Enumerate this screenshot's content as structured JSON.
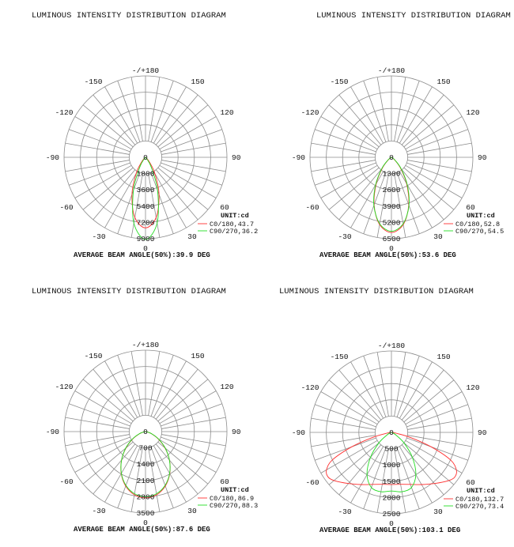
{
  "chart_data": [
    {
      "type": "polar",
      "title": "LUMINOUS INTENSITY DISTRIBUTION DIAGRAM",
      "angle_tick_labels": [
        "-/+180",
        "150",
        "-150",
        "120",
        "-120",
        "90",
        "-90",
        "60",
        "-60",
        "30",
        "-30",
        "0"
      ],
      "radial_tick_labels": [
        "0",
        "1800",
        "3600",
        "5400",
        "7200",
        "9000"
      ],
      "radial_ticks": [
        0,
        1800,
        3600,
        5400,
        7200,
        9000
      ],
      "unit": "UNIT:cd",
      "beam_angle_text": "AVERAGE BEAM ANGLE(50%):39.9 DEG",
      "series": [
        {
          "name": "C0/180,43.7",
          "color": "#ff3030",
          "angles": [
            0,
            10,
            20,
            30,
            40,
            50,
            60,
            90
          ],
          "values": [
            7800,
            6760,
            4380,
            2050,
            650,
            130,
            0,
            0
          ]
        },
        {
          "name": "C90/270,36.2",
          "color": "#22dd22",
          "angles": [
            0,
            10,
            20,
            30,
            40,
            50,
            60,
            90
          ],
          "values": [
            9100,
            7390,
            3900,
            1290,
            240,
            0,
            0,
            0
          ]
        }
      ]
    },
    {
      "type": "polar",
      "title": "LUMINOUS INTENSITY DISTRIBUTION DIAGRAM",
      "angle_tick_labels": [
        "-/+180",
        "150",
        "-150",
        "120",
        "-120",
        "90",
        "-90",
        "60",
        "-60",
        "30",
        "-30",
        "0"
      ],
      "radial_tick_labels": [
        "0",
        "1300",
        "2600",
        "3900",
        "5200",
        "6500"
      ],
      "radial_ticks": [
        0,
        1300,
        2600,
        3900,
        5200,
        6500
      ],
      "unit": "UNIT:cd",
      "beam_angle_text": "AVERAGE BEAM ANGLE(50%):53.6 DEG",
      "series": [
        {
          "name": "C0/180,52.8",
          "color": "#ff3030",
          "angles": [
            0,
            10,
            20,
            30,
            40,
            50,
            60,
            70,
            90
          ],
          "values": [
            6000,
            5450,
            4050,
            2420,
            1120,
            370,
            75,
            0,
            0
          ]
        },
        {
          "name": "C90/270,54.5",
          "color": "#22dd22",
          "angles": [
            0,
            10,
            20,
            30,
            40,
            50,
            60,
            70,
            90
          ],
          "values": [
            5900,
            5390,
            4090,
            2530,
            1230,
            440,
            100,
            0,
            0
          ]
        }
      ]
    },
    {
      "type": "polar",
      "title": "LUMINOUS INTENSITY DISTRIBUTION DIAGRAM",
      "angle_tick_labels": [
        "-/+180",
        "150",
        "-150",
        "120",
        "-120",
        "90",
        "-90",
        "60",
        "-60",
        "30",
        "-30",
        "0"
      ],
      "radial_tick_labels": [
        "0",
        "700",
        "1400",
        "2100",
        "2800",
        "3500"
      ],
      "radial_ticks": [
        0,
        700,
        1400,
        2100,
        2800,
        3500
      ],
      "unit": "UNIT:cd",
      "beam_angle_text": "AVERAGE BEAM ANGLE(50%):87.6 DEG",
      "series": [
        {
          "name": "C0/180,86.9",
          "color": "#ff3030",
          "angles": [
            0,
            10,
            20,
            30,
            40,
            50,
            60,
            70,
            80,
            90
          ],
          "values": [
            2850,
            2756,
            2490,
            2085,
            1600,
            1092,
            633,
            277,
            64,
            0
          ]
        },
        {
          "name": "C90/270,88.3",
          "color": "#22dd22",
          "angles": [
            0,
            10,
            20,
            30,
            40,
            50,
            60,
            70,
            80,
            90
          ],
          "values": [
            2800,
            2712,
            2460,
            2073,
            1604,
            1112,
            658,
            297,
            72,
            0
          ]
        }
      ]
    },
    {
      "type": "polar",
      "title": "LUMINOUS INTENSITY DISTRIBUTION DIAGRAM",
      "angle_tick_labels": [
        "-/+180",
        "150",
        "-150",
        "120",
        "-120",
        "90",
        "-90",
        "60",
        "-60",
        "30",
        "-30",
        "0"
      ],
      "radial_tick_labels": [
        "0",
        "500",
        "1000",
        "1500",
        "2000",
        "2500"
      ],
      "radial_ticks": [
        0,
        500,
        1000,
        1500,
        2000,
        2500
      ],
      "unit": "UNIT:cd",
      "beam_angle_text": "AVERAGE BEAM ANGLE(50%):103.1 DEG",
      "series": [
        {
          "name": "C0/180,132.7",
          "color": "#ff3030",
          "angles": [
            0,
            10,
            20,
            30,
            40,
            50,
            55,
            60,
            65,
            70,
            75,
            80,
            90
          ],
          "values": [
            1600,
            1620,
            1700,
            1850,
            2050,
            2300,
            2380,
            2300,
            2000,
            1300,
            600,
            150,
            0
          ]
        },
        {
          "name": "C90/270,73.4",
          "color": "#22dd22",
          "angles": [
            0,
            10,
            20,
            30,
            40,
            50,
            60,
            70,
            80,
            90
          ],
          "values": [
            1800,
            1850,
            1800,
            1500,
            1000,
            500,
            150,
            30,
            0,
            0
          ]
        }
      ]
    }
  ]
}
